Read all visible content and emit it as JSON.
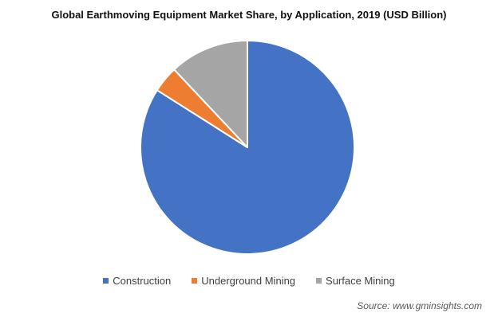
{
  "chart_data": {
    "type": "pie",
    "title": "Global Earthmoving Equipment Market Share, by Application, 2019 (USD Billion)",
    "categories": [
      "Construction",
      "Underground Mining",
      "Surface Mining"
    ],
    "values": [
      84,
      4,
      12
    ],
    "colors": [
      "#4472C4",
      "#ED7D31",
      "#A5A5A5"
    ],
    "start_angle_deg": 0,
    "direction": "clockwise",
    "legend_position": "bottom",
    "source": "Source:  www.gminsights.com"
  }
}
